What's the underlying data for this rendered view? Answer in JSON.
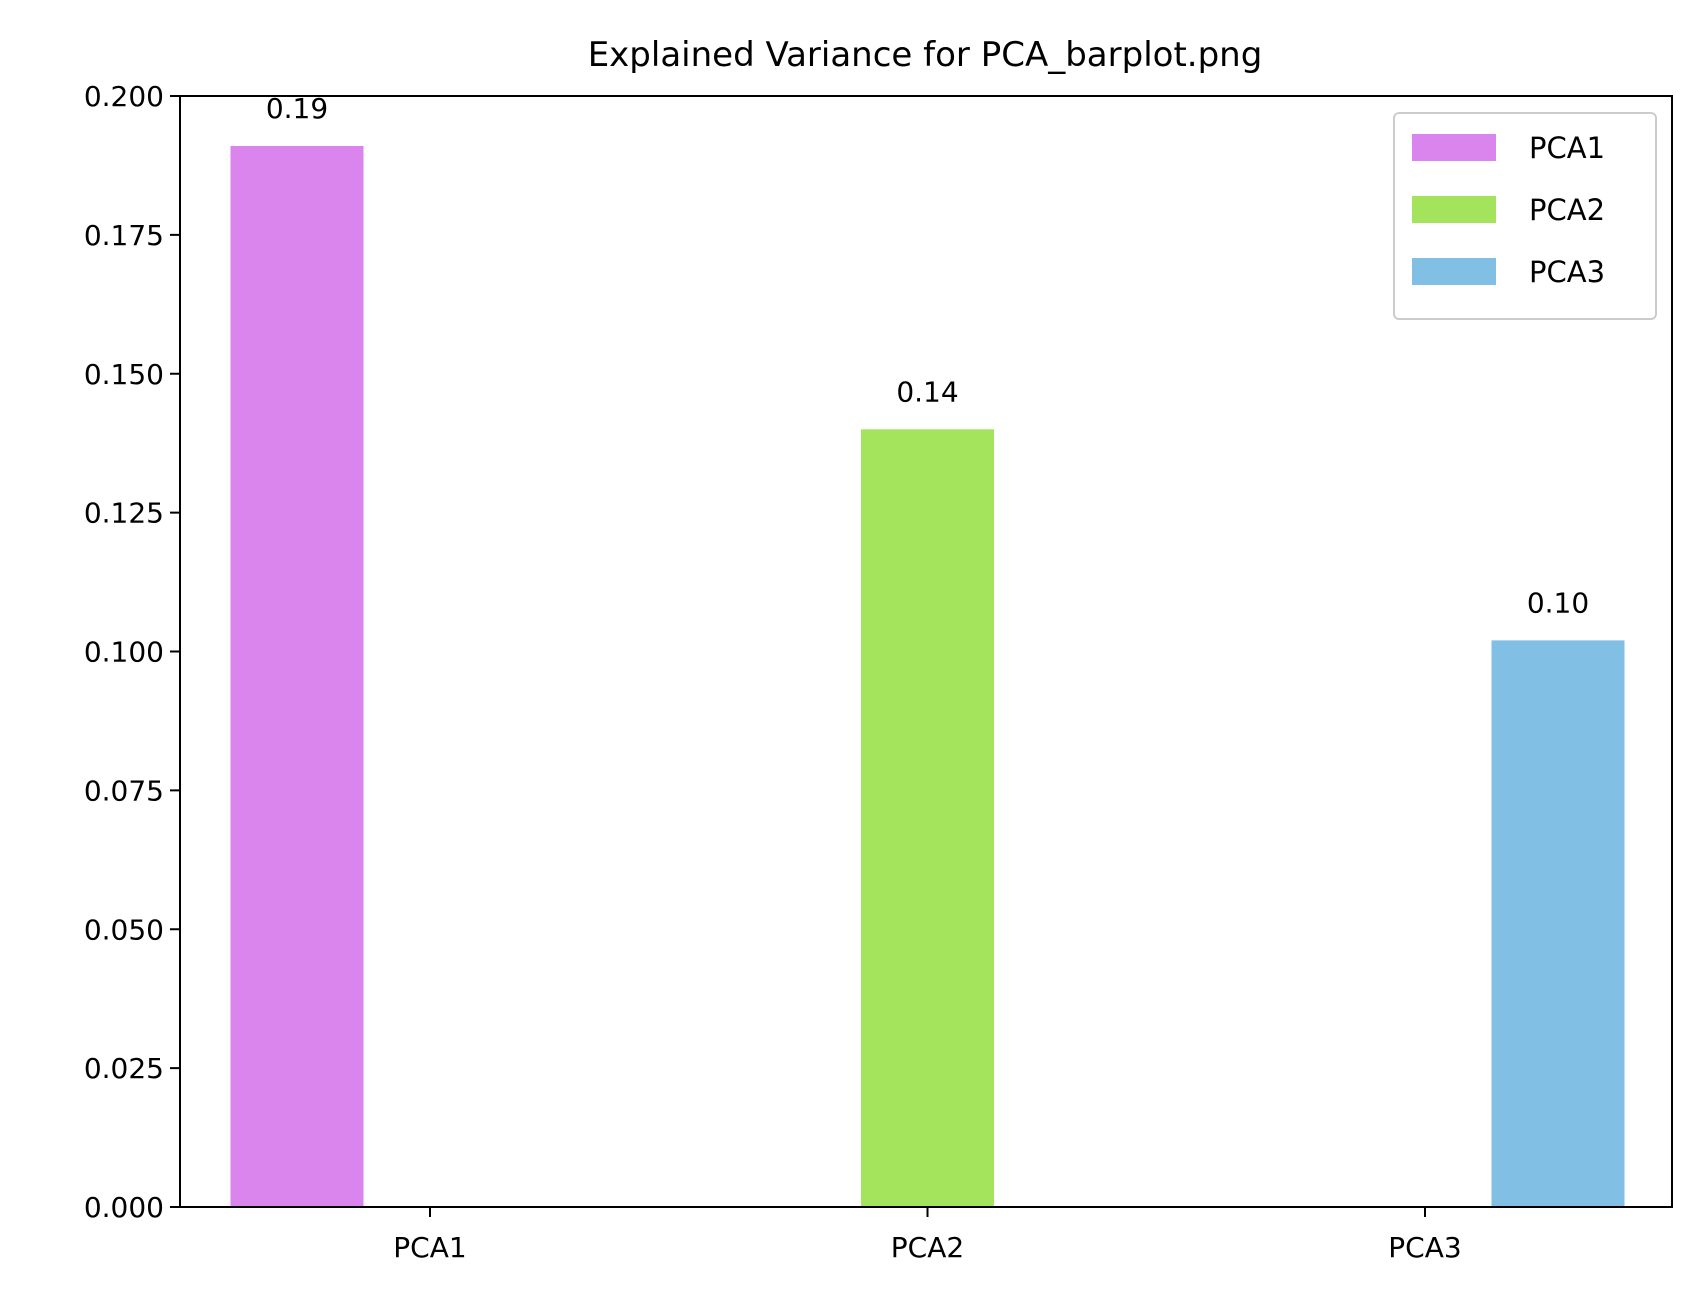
{
  "chart_data": {
    "type": "bar",
    "title": "Explained Variance for PCA_barplot.png",
    "xlabel": "",
    "ylabel": "",
    "categories": [
      "PCA1",
      "PCA2",
      "PCA3"
    ],
    "series": [
      {
        "name": "PCA1",
        "values": [
          0.191,
          null,
          null
        ],
        "labels": [
          "0.19",
          null,
          null
        ],
        "color": "#DA84EE"
      },
      {
        "name": "PCA2",
        "values": [
          null,
          0.14,
          null
        ],
        "labels": [
          null,
          "0.14",
          null
        ],
        "color": "#A4E35C"
      },
      {
        "name": "PCA3",
        "values": [
          null,
          null,
          0.102
        ],
        "labels": [
          null,
          null,
          "0.10"
        ],
        "color": "#81BFE5"
      }
    ],
    "ylim": [
      0,
      0.2
    ],
    "yticks": [
      "0.000",
      "0.025",
      "0.050",
      "0.075",
      "0.100",
      "0.125",
      "0.150",
      "0.175",
      "0.200"
    ],
    "grid": false,
    "legend_position": "top-right"
  }
}
